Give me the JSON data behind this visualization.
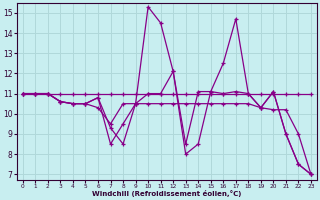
{
  "xlabel": "Windchill (Refroidissement éolien,°C)",
  "bg_color": "#c8eef0",
  "grid_color": "#b0d8da",
  "line_color": "#880088",
  "xlim": [
    -0.5,
    23.5
  ],
  "ylim": [
    6.7,
    15.5
  ],
  "xticks": [
    0,
    1,
    2,
    3,
    4,
    5,
    6,
    7,
    8,
    9,
    10,
    11,
    12,
    13,
    14,
    15,
    16,
    17,
    18,
    19,
    20,
    21,
    22,
    23
  ],
  "yticks": [
    7,
    8,
    9,
    10,
    11,
    12,
    13,
    14,
    15
  ],
  "series": [
    {
      "x": [
        0,
        1,
        2,
        3,
        4,
        5,
        6,
        7,
        8,
        9,
        10,
        11,
        12,
        13,
        14,
        15,
        16,
        17,
        18,
        19,
        20,
        21,
        22,
        23
      ],
      "y": [
        11,
        11,
        11,
        11,
        11,
        11,
        11,
        11,
        11,
        11,
        11,
        11,
        11,
        11,
        11,
        11,
        11,
        11,
        11,
        11,
        11,
        11,
        11,
        11
      ]
    },
    {
      "x": [
        0,
        1,
        2,
        3,
        4,
        5,
        6,
        7,
        8,
        9,
        10,
        11,
        12,
        13,
        14,
        15,
        16,
        17,
        18,
        19,
        20,
        21,
        22,
        23
      ],
      "y": [
        11,
        11,
        11,
        10.6,
        10.5,
        10.5,
        10.3,
        9.5,
        10.5,
        10.5,
        10.5,
        10.5,
        10.5,
        10.5,
        10.5,
        10.5,
        10.5,
        10.5,
        10.5,
        10.3,
        10.2,
        10.2,
        9.0,
        7.0
      ]
    },
    {
      "x": [
        0,
        1,
        2,
        3,
        4,
        5,
        6,
        7,
        8,
        9,
        10,
        11,
        12,
        13,
        14,
        15,
        16,
        17,
        18,
        19,
        20,
        21,
        22,
        23
      ],
      "y": [
        11,
        11,
        11,
        10.6,
        10.5,
        10.5,
        10.8,
        8.5,
        9.5,
        10.5,
        15.3,
        14.5,
        12.1,
        8.0,
        8.5,
        11.1,
        12.5,
        14.7,
        11,
        10.3,
        11.1,
        9.0,
        7.5,
        7.0
      ]
    },
    {
      "x": [
        0,
        1,
        2,
        3,
        4,
        5,
        6,
        7,
        8,
        9,
        10,
        11,
        12,
        13,
        14,
        15,
        16,
        17,
        18,
        19,
        20,
        21,
        22,
        23
      ],
      "y": [
        11,
        11,
        11,
        10.6,
        10.5,
        10.5,
        10.8,
        9.3,
        8.5,
        10.5,
        11,
        11,
        12.1,
        8.5,
        11.1,
        11.1,
        11,
        11.1,
        11,
        10.3,
        11.1,
        9.0,
        7.5,
        7.0
      ]
    }
  ]
}
